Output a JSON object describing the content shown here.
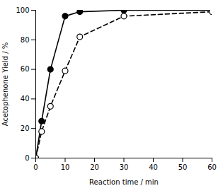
{
  "chart_data": {
    "type": "line",
    "xlabel": "Reaction time / min",
    "ylabel": "Acetophenone Yield / %",
    "x": [
      0,
      2,
      5,
      10,
      15,
      30,
      60
    ],
    "series": [
      {
        "color": "#000000",
        "values": [
          0,
          25,
          60,
          96,
          99,
          100,
          100
        ],
        "marker": "circle",
        "line_style": "solid"
      },
      {
        "color": "#000000",
        "values": [
          0,
          18,
          35,
          59,
          82,
          96,
          99
        ],
        "marker": "open_circle",
        "line_style": "dashed"
      }
    ],
    "xlim": [
      0,
      60
    ],
    "ylim": [
      0,
      100
    ],
    "xticks": [
      0,
      10,
      20,
      30,
      40,
      50,
      60
    ],
    "yticks": [
      0,
      20,
      40,
      60,
      80,
      100
    ],
    "grid": false
  }
}
